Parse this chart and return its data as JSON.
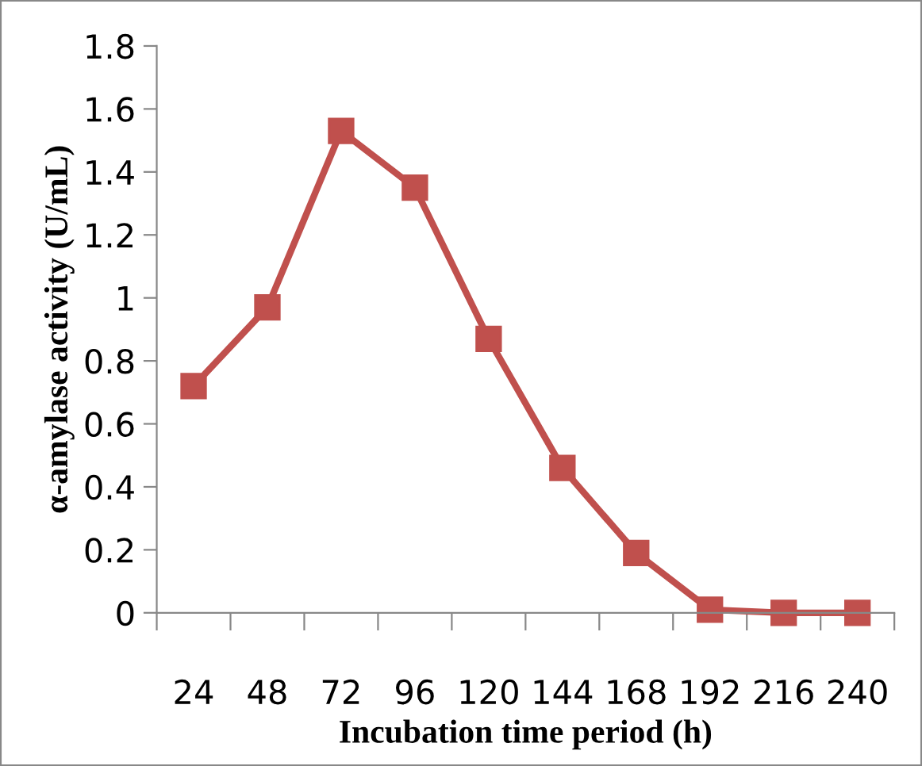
{
  "chart_data": {
    "type": "line",
    "xlabel": "Incubation time period (h)",
    "ylabel": "α-amylase activity (U/mL)",
    "categories": [
      "24",
      "48",
      "72",
      "96",
      "120",
      "144",
      "168",
      "192",
      "216",
      "240"
    ],
    "series": [
      {
        "color": "#c0504d",
        "values": [
          0.72,
          0.97,
          1.53,
          1.35,
          0.87,
          0.46,
          0.19,
          0.01,
          0.0,
          0.0
        ]
      }
    ],
    "ylim": [
      0,
      1.8
    ],
    "yticks": [
      0,
      0.2,
      0.4,
      0.6,
      0.8,
      1,
      1.2,
      1.4,
      1.6,
      1.8
    ],
    "grid": false,
    "legend": false,
    "marker": "square",
    "line_style": "solid"
  }
}
